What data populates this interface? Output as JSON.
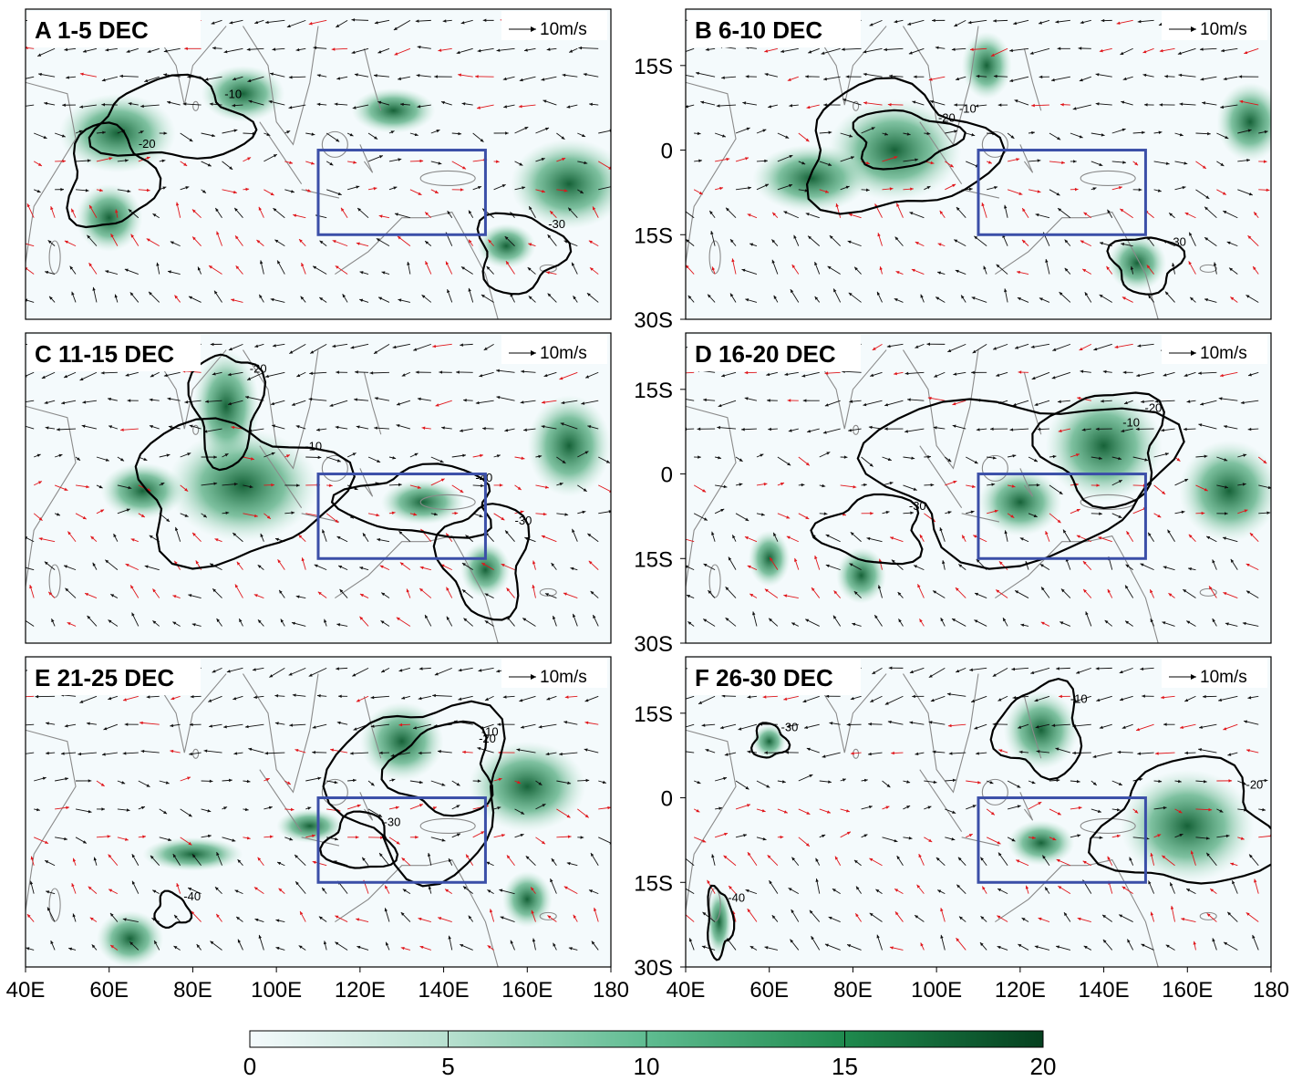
{
  "panels": [
    {
      "id": "A",
      "label": "A  1-5 DEC"
    },
    {
      "id": "B",
      "label": "B  6-10 DEC"
    },
    {
      "id": "C",
      "label": "C  11-15 DEC"
    },
    {
      "id": "D",
      "label": "D  16-20 DEC"
    },
    {
      "id": "E",
      "label": "E  21-25 DEC"
    },
    {
      "id": "F",
      "label": "F  26-30 DEC"
    }
  ],
  "reference_vector": "10m/s",
  "lat_labels": [
    "15S",
    "0",
    "15S",
    "30S"
  ],
  "lon_labels": [
    "40E",
    "60E",
    "80E",
    "100E",
    "120E",
    "140E",
    "160E",
    "180"
  ],
  "colorbar": {
    "ticks": [
      "0",
      "5",
      "10",
      "15",
      "20"
    ],
    "color_low": "#f4fafc",
    "color_high": "#05401f"
  },
  "contour_labels": [
    "-10",
    "-20",
    "-30",
    "-40"
  ],
  "box_region": {
    "lon": [
      110,
      150
    ],
    "lat": [
      0,
      -15
    ],
    "color": "#3b4fa8"
  },
  "colors": {
    "red_vectors": "#e0161b",
    "black_vectors": "#111111",
    "coast": "#8a8a8a"
  }
}
